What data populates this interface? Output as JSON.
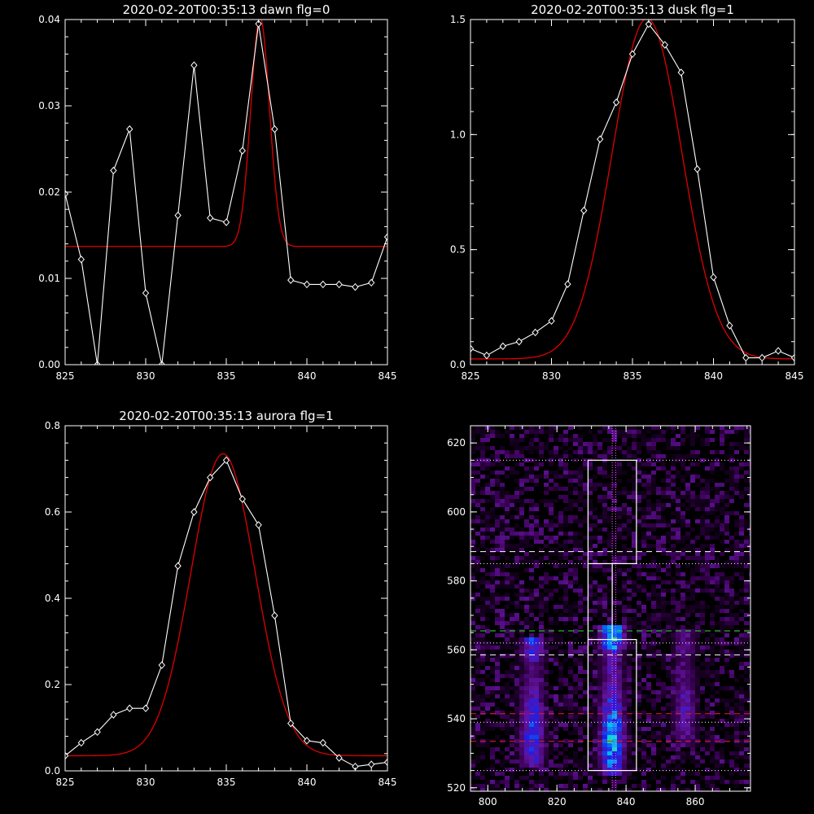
{
  "chart_data": [
    {
      "type": "line",
      "title": "2020-02-20T00:35:13 dawn flg=0",
      "xlabel": "",
      "ylabel": "",
      "xlim": [
        825,
        845
      ],
      "ylim": [
        0,
        0.04
      ],
      "xticks": [
        "825",
        "830",
        "835",
        "840",
        "845"
      ],
      "yticks": [
        "0.00",
        "0.01",
        "0.02",
        "0.03",
        "0.04"
      ],
      "colors": {
        "data": "#ffffff",
        "fit": "#e00000"
      },
      "series": [
        {
          "kind": "data",
          "x": [
            825,
            826,
            827,
            828,
            829,
            830,
            831,
            832,
            833,
            834,
            835,
            836,
            837,
            838,
            839,
            840,
            841,
            842,
            843,
            844,
            845
          ],
          "y": [
            0.0198,
            0.0122,
            0.0,
            0.0225,
            0.0273,
            0.0083,
            0.0,
            0.0173,
            0.0347,
            0.017,
            0.0165,
            0.0248,
            0.0395,
            0.0273,
            0.0098,
            0.0093,
            0.0093,
            0.0093,
            0.009,
            0.0095,
            0.0148
          ]
        },
        {
          "kind": "fit",
          "gauss": {
            "amp": 0.0265,
            "center": 837.1,
            "sigma": 0.58,
            "base": 0.0137
          }
        }
      ]
    },
    {
      "type": "line",
      "title": "2020-02-20T00:35:13 dusk flg=1",
      "xlabel": "",
      "ylabel": "",
      "xlim": [
        825,
        845
      ],
      "ylim": [
        0,
        1.5
      ],
      "xticks": [
        "825",
        "830",
        "835",
        "840",
        "845"
      ],
      "yticks": [
        "0.0",
        "0.5",
        "1.0",
        "1.5"
      ],
      "colors": {
        "data": "#ffffff",
        "fit": "#e00000"
      },
      "series": [
        {
          "kind": "data",
          "x": [
            825,
            826,
            827,
            828,
            829,
            830,
            831,
            832,
            833,
            834,
            835,
            836,
            837,
            838,
            839,
            840,
            841,
            842,
            843,
            844,
            845
          ],
          "y": [
            0.07,
            0.04,
            0.08,
            0.1,
            0.14,
            0.19,
            0.35,
            0.67,
            0.98,
            1.14,
            1.35,
            1.48,
            1.39,
            1.27,
            0.85,
            0.38,
            0.17,
            0.03,
            0.03,
            0.06,
            0.03
          ]
        },
        {
          "kind": "fit",
          "gauss": {
            "amp": 1.48,
            "center": 835.9,
            "sigma": 2.15,
            "base": 0.025
          }
        }
      ]
    },
    {
      "type": "line",
      "title": "2020-02-20T00:35:13 aurora flg=1",
      "xlabel": "",
      "ylabel": "",
      "xlim": [
        825,
        845
      ],
      "ylim": [
        0,
        0.8
      ],
      "xticks": [
        "825",
        "830",
        "835",
        "840",
        "845"
      ],
      "yticks": [
        "0.0",
        "0.2",
        "0.4",
        "0.6",
        "0.8"
      ],
      "colors": {
        "data": "#ffffff",
        "fit": "#e00000"
      },
      "series": [
        {
          "kind": "data",
          "x": [
            825,
            826,
            827,
            828,
            829,
            830,
            831,
            832,
            833,
            834,
            835,
            836,
            837,
            838,
            839,
            840,
            841,
            842,
            843,
            844,
            845
          ],
          "y": [
            0.035,
            0.065,
            0.09,
            0.13,
            0.145,
            0.145,
            0.245,
            0.475,
            0.6,
            0.68,
            0.72,
            0.63,
            0.57,
            0.36,
            0.11,
            0.07,
            0.065,
            0.03,
            0.01,
            0.015,
            0.02
          ]
        },
        {
          "kind": "fit",
          "gauss": {
            "amp": 0.7,
            "center": 834.8,
            "sigma": 2.0,
            "base": 0.035
          }
        }
      ]
    },
    {
      "type": "heatmap",
      "title": "",
      "xlim": [
        795,
        876
      ],
      "ylim": [
        519,
        625
      ],
      "xticks": [
        800,
        820,
        840,
        860
      ],
      "yticks": [
        520,
        540,
        560,
        580,
        600,
        620
      ],
      "colors": {
        "box": "#ffffff",
        "dotted": "#ffffff",
        "vline": "#ff66ff",
        "dash_white": "#ffffff",
        "dash_green": "#33dd33",
        "dash_red": "#dd2222"
      },
      "columns": [
        {
          "name": "dawn",
          "center": 813,
          "y_range": [
            527,
            563
          ],
          "peak": 0.7
        },
        {
          "name": "aurora",
          "center": 836,
          "y_range": [
            525,
            566
          ],
          "peak": 1.0
        },
        {
          "name": "dusk",
          "center": 857,
          "y_range": [
            533,
            565
          ],
          "peak": 0.45
        }
      ],
      "boxes": [
        {
          "x": [
            829,
            843
          ],
          "y": [
            585,
            615
          ]
        },
        {
          "x": [
            829,
            843
          ],
          "y": [
            525,
            563
          ]
        }
      ],
      "connector": [
        {
          "x": 829,
          "y": [
            563,
            585
          ]
        },
        {
          "x": 836,
          "y": [
            563,
            585
          ]
        }
      ],
      "dotted_h": [
        615,
        585,
        562,
        539,
        525
      ],
      "vlines": [
        836,
        837
      ],
      "dashed": [
        {
          "y": 588.5,
          "color": "dash_white"
        },
        {
          "y": 565.5,
          "color": "dash_green"
        },
        {
          "y": 558.5,
          "color": "dash_white"
        },
        {
          "y": 541.5,
          "color": "dash_red"
        },
        {
          "y": 533.5,
          "color": "dash_red"
        }
      ]
    }
  ]
}
